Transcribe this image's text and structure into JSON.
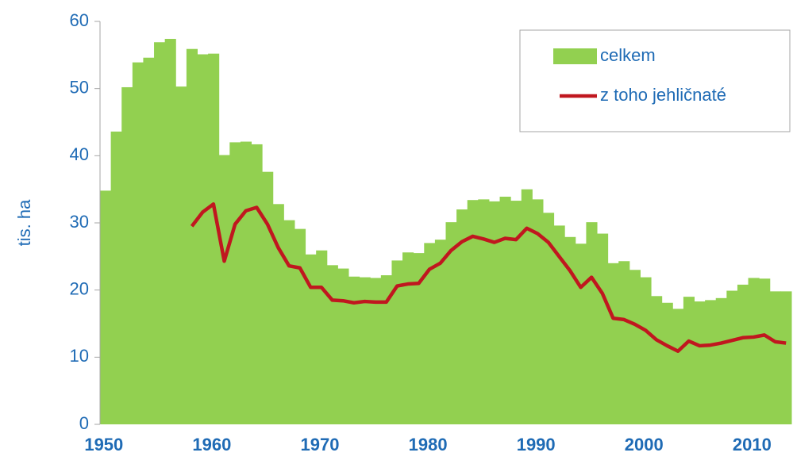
{
  "chart_data": {
    "type": "bar",
    "y_label": "tis. ha",
    "x": [
      1950,
      1951,
      1952,
      1953,
      1954,
      1955,
      1956,
      1957,
      1958,
      1959,
      1960,
      1961,
      1962,
      1963,
      1964,
      1965,
      1966,
      1967,
      1968,
      1969,
      1970,
      1971,
      1972,
      1973,
      1974,
      1975,
      1976,
      1977,
      1978,
      1979,
      1980,
      1981,
      1982,
      1983,
      1984,
      1985,
      1986,
      1987,
      1988,
      1989,
      1990,
      1991,
      1992,
      1993,
      1994,
      1995,
      1996,
      1997,
      1998,
      1999,
      2000,
      2001,
      2002,
      2003,
      2004,
      2005,
      2006,
      2007,
      2008,
      2009,
      2010,
      2011,
      2012,
      2013
    ],
    "series": [
      {
        "name": "celkem",
        "type": "bar",
        "color": "#92d050",
        "values": [
          34.8,
          43.6,
          50.2,
          53.9,
          54.6,
          56.9,
          57.4,
          50.3,
          55.9,
          55.1,
          55.2,
          40.1,
          42.0,
          42.1,
          41.7,
          37.6,
          32.8,
          30.4,
          29.1,
          25.3,
          25.9,
          23.7,
          23.2,
          22.0,
          21.9,
          21.8,
          22.2,
          24.4,
          25.6,
          25.5,
          27.0,
          27.5,
          30.1,
          32.0,
          33.4,
          33.5,
          33.2,
          33.9,
          33.3,
          35.0,
          33.5,
          31.5,
          29.6,
          27.9,
          26.9,
          30.1,
          28.4,
          24.0,
          24.3,
          23.0,
          21.9,
          19.1,
          18.1,
          17.2,
          19.0,
          18.3,
          18.5,
          18.8,
          19.9,
          20.8,
          21.8,
          21.7,
          19.8,
          19.8
        ]
      },
      {
        "name": "z toho jehličnaté",
        "type": "line",
        "color": "#c0171f",
        "values": [
          null,
          null,
          null,
          null,
          null,
          null,
          null,
          null,
          29.5,
          31.6,
          32.8,
          24.3,
          29.8,
          31.8,
          32.3,
          29.8,
          26.3,
          23.6,
          23.3,
          20.4,
          20.4,
          18.5,
          18.4,
          18.1,
          18.3,
          18.2,
          18.2,
          20.6,
          20.9,
          21.0,
          23.1,
          24.0,
          25.9,
          27.2,
          28.0,
          27.6,
          27.1,
          27.7,
          27.5,
          29.2,
          28.4,
          27.1,
          25.0,
          22.9,
          20.4,
          21.9,
          19.5,
          15.8,
          15.6,
          14.9,
          14.0,
          12.6,
          11.7,
          10.9,
          12.4,
          11.7,
          11.8,
          12.1,
          12.5,
          12.9,
          13.0,
          13.3,
          12.3,
          12.1
        ]
      }
    ],
    "xlim": [
      1950,
      2014
    ],
    "xticks": [
      1950,
      1960,
      1970,
      1980,
      1990,
      2000,
      2010
    ],
    "ylim": [
      0,
      60
    ],
    "yticks": [
      0,
      10,
      20,
      30,
      40,
      50,
      60
    ],
    "grid": false,
    "legend": "top-right"
  }
}
